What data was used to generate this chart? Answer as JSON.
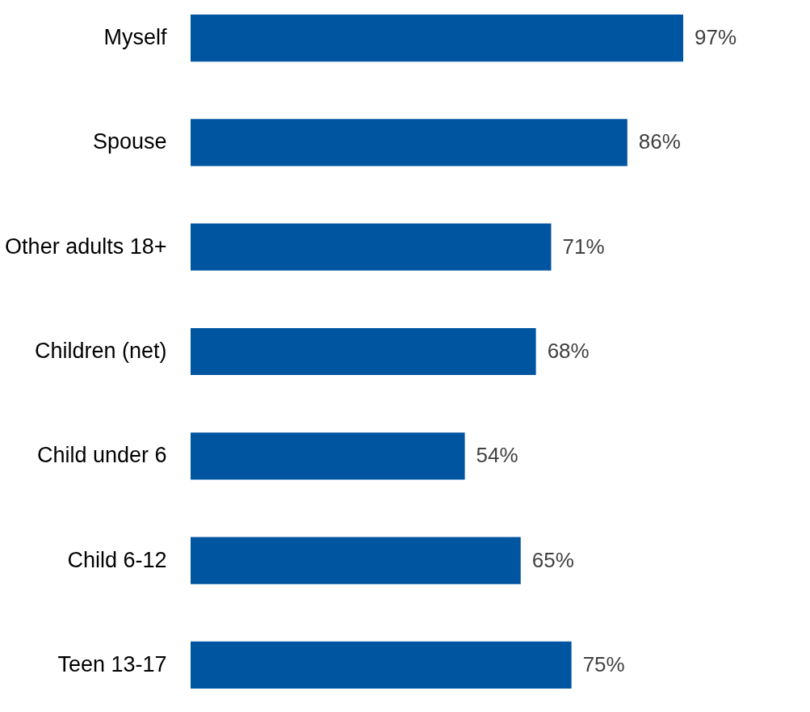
{
  "chart_data": {
    "type": "bar",
    "orientation": "horizontal",
    "categories": [
      "Myself",
      "Spouse",
      "Other adults 18+",
      "Children (net)",
      "Child under 6",
      "Child 6-12",
      "Teen 13-17"
    ],
    "values": [
      97,
      86,
      71,
      68,
      54,
      65,
      75
    ],
    "color": "#0055a1",
    "value_labels": [
      "97%",
      "86%",
      "71%",
      "68%",
      "54%",
      "65%",
      "75%"
    ]
  }
}
